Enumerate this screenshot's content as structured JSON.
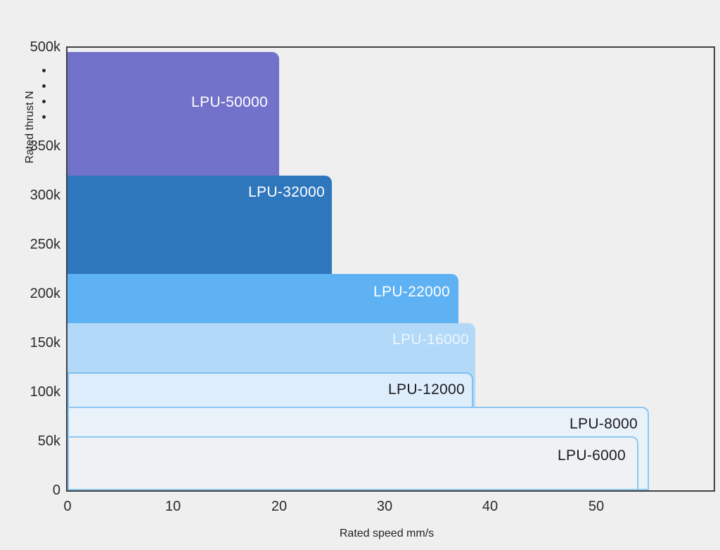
{
  "page": {
    "background": "#efeff0",
    "frame_color": "#3e4144",
    "tick_color": "#2b2b2b"
  },
  "chart_data": {
    "type": "bar",
    "variant": "overlapping-capability-envelopes",
    "title": "",
    "xlabel": "Rated speed mm/s",
    "ylabel": "Rated thrust  N",
    "grid": false,
    "legend": "none",
    "x_ticks": [
      "0",
      "10",
      "20",
      "30",
      "40",
      "50"
    ],
    "x_tick_values": [
      0,
      10,
      20,
      30,
      40,
      50
    ],
    "y_ticks": [
      "0",
      "50k",
      "100k",
      "150k",
      "200k",
      "250k",
      "300k",
      "350k",
      "500k"
    ],
    "y_tick_values_n": [
      0,
      50000,
      100000,
      150000,
      200000,
      250000,
      300000,
      350000,
      500000
    ],
    "axis_break": {
      "between": [
        "350k",
        "500k"
      ],
      "dots": 4
    },
    "xlim": [
      0,
      61
    ],
    "series": [
      {
        "model": "LPU-50000",
        "rated_thrust_n": 500000,
        "rated_speed_mm_s": 20,
        "fill": "#7372cb",
        "label_color": "#ffffff",
        "label_dx": 16,
        "label_dy": 60
      },
      {
        "model": "LPU-32000",
        "rated_thrust_n": 320000,
        "rated_speed_mm_s": 25,
        "fill": "#2f77bd",
        "label_color": "#ffffff",
        "label_dx": 10,
        "label_dy": 12
      },
      {
        "model": "LPU-22000",
        "rated_thrust_n": 220000,
        "rated_speed_mm_s": 37,
        "fill": "#5eb2f3",
        "label_color": "#ffffff",
        "label_dx": 12,
        "label_dy": 14
      },
      {
        "model": "LPU-16000",
        "rated_thrust_n": 170000,
        "rated_speed_mm_s": 38.6,
        "fill": "#b2d9f8",
        "label_color": "#edf6fe",
        "label_dx": 9,
        "label_dy": 12
      },
      {
        "model": "LPU-12000",
        "rated_thrust_n": 120000,
        "rated_speed_mm_s": 38.4,
        "fill": "#ddedfc",
        "border_color": "#7fc1f0",
        "label_color": "#1b1b1d",
        "label_dx": 10,
        "label_dy": 11
      },
      {
        "model": "LPU-8000",
        "rated_thrust_n": 85000,
        "rated_speed_mm_s": 55,
        "fill": "#e9f1f9",
        "border_color": "#8cc8f2",
        "label_color": "#1b1b1d",
        "label_dx": 14,
        "label_dy": 11
      },
      {
        "model": "LPU-6000",
        "rated_thrust_n": 55000,
        "rated_speed_mm_s": 54,
        "fill": "#eff1f4",
        "border_color": "#8cc8f2",
        "label_color": "#1b1b1d",
        "label_dx": 16,
        "label_dy": 14
      }
    ]
  }
}
